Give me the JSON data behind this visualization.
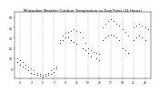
{
  "title": "Milwaukee Weather Outdoor Temperature vs Dew Point (24 Hours)",
  "title_fontsize": 2.8,
  "background_color": "#ffffff",
  "temp_color": "#cc0000",
  "dew_color": "#0000cc",
  "ylim": [
    -10,
    55
  ],
  "xlim": [
    0,
    24
  ],
  "tick_fontsize": 2.2,
  "grid_color": "#888888",
  "temp_data": [
    [
      0.5,
      10
    ],
    [
      1.0,
      8
    ],
    [
      1.5,
      6
    ],
    [
      2.0,
      4
    ],
    [
      2.5,
      2
    ],
    [
      3.0,
      0
    ],
    [
      3.5,
      -2
    ],
    [
      4.0,
      -4
    ],
    [
      4.5,
      -5
    ],
    [
      5.0,
      -6
    ],
    [
      5.5,
      -5
    ],
    [
      6.0,
      -4
    ],
    [
      6.5,
      -2
    ],
    [
      7.0,
      0
    ],
    [
      7.5,
      2
    ],
    [
      8.0,
      28
    ],
    [
      8.5,
      32
    ],
    [
      9.0,
      35
    ],
    [
      9.5,
      36
    ],
    [
      10.0,
      37
    ],
    [
      10.5,
      38
    ],
    [
      11.0,
      37
    ],
    [
      11.5,
      36
    ],
    [
      12.0,
      30
    ],
    [
      12.5,
      25
    ],
    [
      13.0,
      20
    ],
    [
      13.5,
      18
    ],
    [
      14.0,
      16
    ],
    [
      14.5,
      15
    ],
    [
      15.0,
      14
    ],
    [
      15.5,
      40
    ],
    [
      16.0,
      44
    ],
    [
      16.5,
      46
    ],
    [
      17.0,
      48
    ],
    [
      17.5,
      46
    ],
    [
      18.0,
      44
    ],
    [
      18.5,
      42
    ],
    [
      19.0,
      38
    ],
    [
      19.5,
      36
    ],
    [
      20.0,
      32
    ],
    [
      21.0,
      40
    ],
    [
      21.5,
      42
    ],
    [
      22.0,
      44
    ],
    [
      22.5,
      42
    ],
    [
      23.0,
      40
    ],
    [
      23.5,
      38
    ]
  ],
  "dew_data": [
    [
      0.5,
      6
    ],
    [
      1.0,
      4
    ],
    [
      1.5,
      2
    ],
    [
      2.0,
      0
    ],
    [
      2.5,
      -2
    ],
    [
      3.0,
      -4
    ],
    [
      3.5,
      -5
    ],
    [
      4.0,
      -6
    ],
    [
      4.5,
      -7
    ],
    [
      5.0,
      -8
    ],
    [
      5.5,
      -7
    ],
    [
      6.0,
      -6
    ],
    [
      6.5,
      -5
    ],
    [
      7.0,
      -3
    ],
    [
      7.5,
      0
    ],
    [
      8.0,
      25
    ],
    [
      8.5,
      28
    ],
    [
      9.0,
      30
    ],
    [
      9.5,
      30
    ],
    [
      10.0,
      28
    ],
    [
      10.5,
      26
    ],
    [
      11.0,
      24
    ],
    [
      12.0,
      20
    ],
    [
      12.5,
      18
    ],
    [
      13.0,
      15
    ],
    [
      13.5,
      12
    ],
    [
      14.5,
      10
    ],
    [
      15.0,
      8
    ],
    [
      15.5,
      28
    ],
    [
      16.0,
      30
    ],
    [
      16.5,
      32
    ],
    [
      17.0,
      33
    ],
    [
      17.5,
      32
    ],
    [
      18.0,
      30
    ],
    [
      18.5,
      28
    ],
    [
      19.0,
      20
    ],
    [
      19.5,
      18
    ],
    [
      20.0,
      15
    ],
    [
      21.0,
      28
    ],
    [
      21.5,
      30
    ],
    [
      22.0,
      32
    ],
    [
      22.5,
      30
    ],
    [
      23.0,
      28
    ]
  ],
  "xtick_positions": [
    1,
    3,
    5,
    7,
    9,
    11,
    13,
    15,
    17,
    19,
    21,
    23
  ],
  "xtick_labels": [
    "1",
    "3",
    "5",
    "7",
    "9",
    "11",
    "13",
    "15",
    "17",
    "19",
    "21",
    "23"
  ],
  "ytick_positions": [
    0,
    10,
    20,
    30,
    40,
    50
  ],
  "ytick_labels": [
    "0",
    "10",
    "20",
    "30",
    "40",
    "50"
  ],
  "vgrid_positions": [
    1,
    3,
    5,
    7,
    9,
    11,
    13,
    15,
    17,
    19,
    21,
    23
  ]
}
